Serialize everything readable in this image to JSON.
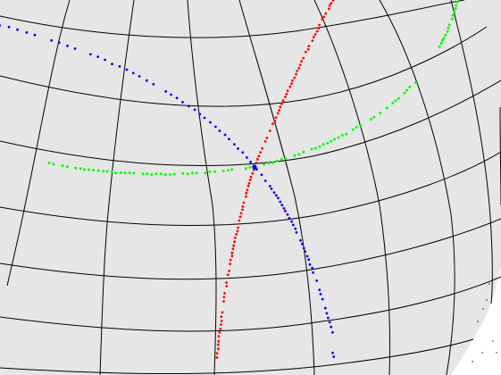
{
  "scene": {
    "background_color": "#ffffff",
    "sphere_fill_color": "#e6e6e6",
    "grid_line_color": "#000000",
    "axis_colors": {
      "x_axis": "#ff0000",
      "y_axis": "#00ff00",
      "z_axis": "#0000ff"
    },
    "origin_marker_color": "#0000ff",
    "edge_dots_color": "#000000"
  }
}
